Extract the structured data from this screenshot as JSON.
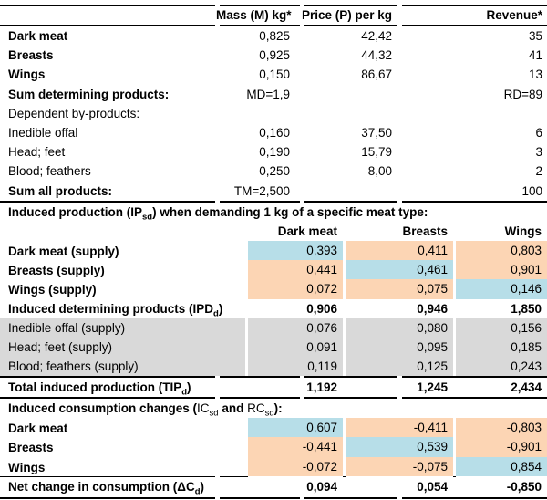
{
  "colors": {
    "diagonal_highlight": "#b7dee8",
    "off_diagonal_highlight": "#fcd5b4",
    "byproduct_row_gray": "#d9d9d9",
    "border": "#000000"
  },
  "top": {
    "headers": {
      "mass": "Mass (M) kg*",
      "price": "Price (P) per kg",
      "revenue": "Revenue*"
    },
    "rows": [
      {
        "label": "Dark meat",
        "mass": "0,825",
        "price": "42,42",
        "revenue": "35"
      },
      {
        "label": "Breasts",
        "mass": "0,925",
        "price": "44,32",
        "revenue": "41"
      },
      {
        "label": "Wings",
        "mass": "0,150",
        "price": "86,67",
        "revenue": "13"
      },
      {
        "label": "Sum determining products:",
        "mass": "MD=1,9",
        "price": "",
        "revenue": "RD=89"
      },
      {
        "label": "Dependent by-products:",
        "mass": "",
        "price": "",
        "revenue": ""
      },
      {
        "label": "Inedible offal",
        "mass": "0,160",
        "price": "37,50",
        "revenue": "6"
      },
      {
        "label": "Head; feet",
        "mass": "0,190",
        "price": "15,79",
        "revenue": "3"
      },
      {
        "label": "Blood; feathers",
        "mass": "0,250",
        "price": "8,00",
        "revenue": "2"
      },
      {
        "label": "Sum all products:",
        "mass": "TM=2,500",
        "price": "",
        "revenue": "100"
      }
    ]
  },
  "production": {
    "title_pre": "Induced production (IP",
    "title_sub": "sd",
    "title_post": ") when demanding 1 kg of a specific meat type:",
    "columns": [
      "Dark meat",
      "Breasts",
      "Wings"
    ],
    "rows": [
      {
        "label": "Dark meat (supply)",
        "v0": "0,393",
        "v1": "0,411",
        "v2": "0,803"
      },
      {
        "label": "Breasts (supply)",
        "v0": "0,441",
        "v1": "0,461",
        "v2": "0,901"
      },
      {
        "label": "Wings (supply)",
        "v0": "0,072",
        "v1": "0,075",
        "v2": "0,146"
      },
      {
        "label_pre": "Induced determining products (IPD",
        "label_sub": "d",
        "label_post": ")",
        "v0": "0,906",
        "v1": "0,946",
        "v2": "1,850"
      },
      {
        "label": "Inedible offal (supply)",
        "v0": "0,076",
        "v1": "0,080",
        "v2": "0,156"
      },
      {
        "label": "Head; feet (supply)",
        "v0": "0,091",
        "v1": "0,095",
        "v2": "0,185"
      },
      {
        "label": "Blood; feathers (supply)",
        "v0": "0,119",
        "v1": "0,125",
        "v2": "0,243"
      },
      {
        "label_pre": "Total induced production (TIP",
        "label_sub": "d",
        "label_post": ")",
        "v0": "1,192",
        "v1": "1,245",
        "v2": "2,434"
      }
    ]
  },
  "consumption": {
    "title_pre": "Induced consumption changes (",
    "title_ic": "IC",
    "title_ic_sub": "sd",
    "title_and": " and ",
    "title_rc": "RC",
    "title_rc_sub": "sd",
    "title_post": "):",
    "rows": [
      {
        "label": "Dark meat",
        "v0": "0,607",
        "v1": "-0,411",
        "v2": "-0,803"
      },
      {
        "label": "Breasts",
        "v0": "-0,441",
        "v1": "0,539",
        "v2": "-0,901"
      },
      {
        "label": "Wings",
        "v0": "-0,072",
        "v1": "-0,075",
        "v2": "0,854"
      },
      {
        "label_pre": "Net change in consumption (ΔC",
        "label_sub": "d",
        "label_post": ")",
        "v0": "0,094",
        "v1": "0,054",
        "v2": "-0,850"
      }
    ]
  }
}
